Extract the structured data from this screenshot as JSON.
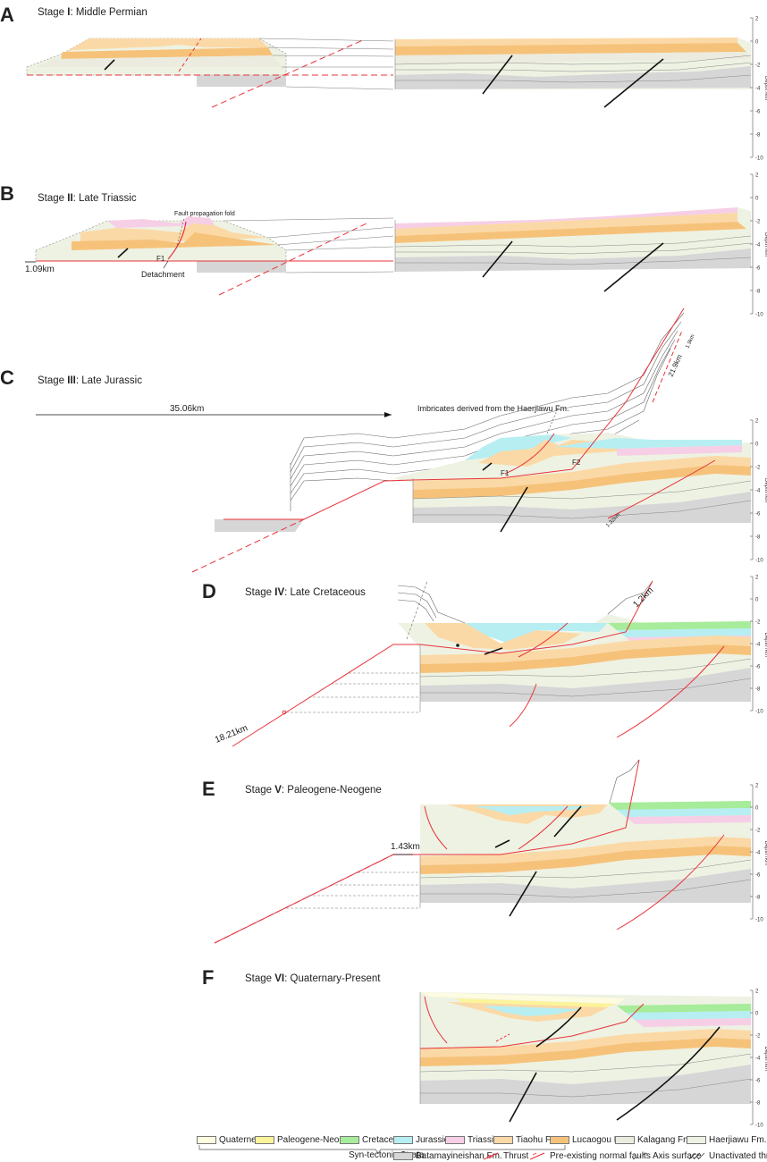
{
  "panels": [
    {
      "letter": "A",
      "stage_prefix": "Stage ",
      "stage_roman": "I",
      "stage_suffix": ": Middle Permian"
    },
    {
      "letter": "B",
      "stage_prefix": "Stage ",
      "stage_roman": "II",
      "stage_suffix": ": Late Triassic"
    },
    {
      "letter": "C",
      "stage_prefix": "Stage ",
      "stage_roman": "III",
      "stage_suffix": ": Late Jurassic"
    },
    {
      "letter": "D",
      "stage_prefix": "Stage ",
      "stage_roman": "IV",
      "stage_suffix": ": Late Cretaceous"
    },
    {
      "letter": "E",
      "stage_prefix": "Stage ",
      "stage_roman": "V",
      "stage_suffix": ": Paleogene-Neogene"
    },
    {
      "letter": "F",
      "stage_prefix": "Stage ",
      "stage_roman": "VI",
      "stage_suffix": ": Quaternary-Present"
    }
  ],
  "depth_axis": {
    "title": "Depth /km",
    "ticks": [
      "2",
      "0",
      "-2",
      "-4",
      "-6",
      "-8",
      "-10"
    ]
  },
  "annotations": {
    "b_fold": "Fault propagation fold",
    "b_f1": "F1",
    "b_shortening": "1.09km",
    "b_detachment": "Detachment",
    "c_shortening": "35.06km",
    "c_imbricates": "Imbricates derived from the Haerjiawu Fm.",
    "c_f1": "F1",
    "c_f2": "F2",
    "c_slip_a": "21.9km",
    "c_slip_b": "1.9km",
    "c_slip_c": "1.32km",
    "d_slip": "1.2km",
    "d_shortening": "18.21km",
    "e_shortening": "1.43km"
  },
  "legend": {
    "items": [
      {
        "label": "Quaternery",
        "color": "#fdfbe0"
      },
      {
        "label": "Paleogene-Neogene",
        "color": "#fbf49a"
      },
      {
        "label": "Cretaceous",
        "color": "#a6ec9a"
      },
      {
        "label": "Jurassic",
        "color": "#b6eef2"
      },
      {
        "label": "Triassic",
        "color": "#f6cfe6"
      },
      {
        "label": "Tiaohu Fm.",
        "color": "#fbd9a6"
      },
      {
        "label": "Lucaogou Fm.",
        "color": "#f6c27a"
      },
      {
        "label": "Kalagang Fm.",
        "color": "#ebebdf"
      },
      {
        "label": "Haerjiawu Fm.",
        "color": "#eef2e3"
      },
      {
        "label": "Batamayineishan Fm.",
        "color": "#d6d6d6"
      }
    ],
    "syn_tectonic": "Syn-tectonic Strata",
    "symbols": [
      {
        "label": "Thrust",
        "icon": "thrust-icon"
      },
      {
        "label": "Pre-existing normal faults",
        "icon": "normal-fault-icon"
      },
      {
        "label": "Axis surface",
        "icon": "axis-surface-icon"
      },
      {
        "label": "Unactivated thrust/fault",
        "icon": "unactivated-fault-icon"
      }
    ]
  },
  "colors": {
    "fault_red": "#e8333a",
    "fault_black": "#111111"
  }
}
